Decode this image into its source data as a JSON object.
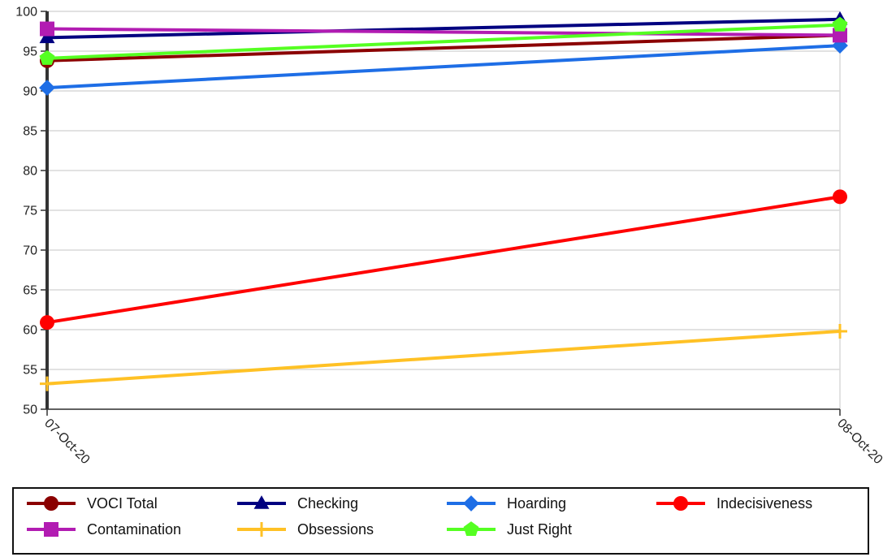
{
  "chart_data": {
    "type": "line",
    "x": [
      "07-Oct-20",
      "08-Oct-20"
    ],
    "ylim": [
      50,
      100
    ],
    "y_ticks": [
      50,
      55,
      60,
      65,
      70,
      75,
      80,
      85,
      90,
      95,
      100
    ],
    "grid": true,
    "legend_position": "bottom",
    "series": [
      {
        "name": "VOCI Total",
        "color": "#8b0000",
        "marker": "circle",
        "values": [
          93.8,
          97.0
        ]
      },
      {
        "name": "Checking",
        "color": "#000080",
        "marker": "triangle",
        "values": [
          96.7,
          99.0
        ]
      },
      {
        "name": "Hoarding",
        "color": "#1e6ee6",
        "marker": "diamond",
        "values": [
          90.4,
          95.7
        ]
      },
      {
        "name": "Indecisiveness",
        "color": "#ff0000",
        "marker": "circle",
        "values": [
          60.9,
          76.7
        ]
      },
      {
        "name": "Contamination",
        "color": "#b21cb2",
        "marker": "square",
        "values": [
          97.8,
          97.0
        ]
      },
      {
        "name": "Obsessions",
        "color": "#ffc125",
        "marker": "plus",
        "values": [
          53.2,
          59.8
        ]
      },
      {
        "name": "Just Right",
        "color": "#55ff22",
        "marker": "pentagon",
        "values": [
          94.1,
          98.3
        ]
      }
    ]
  }
}
